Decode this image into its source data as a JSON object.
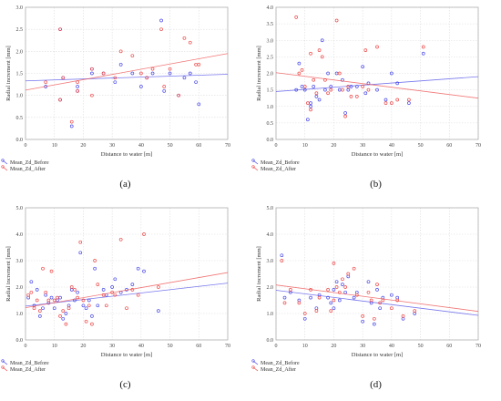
{
  "colors": {
    "before": "#4b4be8",
    "after": "#ee4a4a",
    "frame": "#b0b0b0",
    "grid": "#dddddd"
  },
  "chart_data": [
    {
      "type": "scatter",
      "caption": "(a)",
      "xlabel": "Distance to water [m]",
      "ylabel": "Radial increment [mm]",
      "xlim": [
        0,
        70
      ],
      "ylim": [
        0,
        3.0
      ],
      "xticks": [
        "0",
        "10",
        "20",
        "30",
        "40",
        "50",
        "60",
        "70"
      ],
      "yticks": [
        "0.0",
        "0.5",
        "1.0",
        "1.5",
        "2.0",
        "2.5",
        "3.0"
      ],
      "grid": true,
      "legend": "bottom-left",
      "series": [
        {
          "name": "Mean_Zd_Before",
          "points": [
            [
              7,
              1.2
            ],
            [
              12,
              2.5
            ],
            [
              12,
              0.9
            ],
            [
              13,
              1.4
            ],
            [
              16,
              0.3
            ],
            [
              18,
              1.1
            ],
            [
              18,
              1.2
            ],
            [
              23,
              1.5
            ],
            [
              23,
              1.6
            ],
            [
              27,
              1.5
            ],
            [
              31,
              1.3
            ],
            [
              33,
              1.7
            ],
            [
              37,
              1.5
            ],
            [
              40,
              1.2
            ],
            [
              42,
              1.4
            ],
            [
              44,
              1.5
            ],
            [
              47,
              2.7
            ],
            [
              48,
              1.1
            ],
            [
              50,
              1.5
            ],
            [
              53,
              1.0
            ],
            [
              55,
              1.4
            ],
            [
              57,
              1.5
            ],
            [
              59,
              1.3
            ],
            [
              60,
              0.8
            ]
          ],
          "trend": [
            [
              0,
              1.33
            ],
            [
              70,
              1.48
            ]
          ]
        },
        {
          "name": "Mean_Zd_After",
          "points": [
            [
              7,
              1.3
            ],
            [
              12,
              2.5
            ],
            [
              12,
              0.9
            ],
            [
              13,
              1.4
            ],
            [
              16,
              0.4
            ],
            [
              18,
              1.1
            ],
            [
              18,
              1.3
            ],
            [
              23,
              1.6
            ],
            [
              23,
              1.0
            ],
            [
              27,
              1.5
            ],
            [
              31,
              1.4
            ],
            [
              33,
              2.0
            ],
            [
              37,
              1.9
            ],
            [
              40,
              1.5
            ],
            [
              42,
              1.4
            ],
            [
              44,
              1.6
            ],
            [
              47,
              2.5
            ],
            [
              48,
              1.2
            ],
            [
              50,
              1.6
            ],
            [
              53,
              1.0
            ],
            [
              55,
              2.3
            ],
            [
              57,
              2.2
            ],
            [
              59,
              1.7
            ],
            [
              60,
              1.7
            ]
          ],
          "trend": [
            [
              0,
              1.12
            ],
            [
              70,
              1.95
            ]
          ]
        }
      ]
    },
    {
      "type": "scatter",
      "caption": "(b)",
      "xlabel": "Distance to water [m]",
      "ylabel": "Radial increment [mm]",
      "xlim": [
        0,
        70
      ],
      "ylim": [
        0,
        4.0
      ],
      "xticks": [
        "0",
        "10",
        "20",
        "30",
        "40",
        "50",
        "60",
        "70"
      ],
      "yticks": [
        "0.0",
        "0.5",
        "1.0",
        "1.5",
        "2.0",
        "2.5",
        "3.0",
        "3.5",
        "4.0"
      ],
      "grid": true,
      "legend": "bottom-left",
      "series": [
        {
          "name": "Mean_Zd_Before",
          "points": [
            [
              7,
              1.5
            ],
            [
              8,
              2.3
            ],
            [
              9,
              1.6
            ],
            [
              10,
              1.5
            ],
            [
              11,
              0.6
            ],
            [
              12,
              1.1
            ],
            [
              12,
              1.0
            ],
            [
              13,
              1.6
            ],
            [
              14,
              1.3
            ],
            [
              15,
              1.2
            ],
            [
              16,
              3.0
            ],
            [
              17,
              1.5
            ],
            [
              18,
              2.0
            ],
            [
              19,
              1.6
            ],
            [
              21,
              2.0
            ],
            [
              22,
              1.5
            ],
            [
              23,
              1.8
            ],
            [
              24,
              0.8
            ],
            [
              25,
              1.5
            ],
            [
              26,
              1.6
            ],
            [
              28,
              1.6
            ],
            [
              30,
              2.2
            ],
            [
              31,
              1.4
            ],
            [
              32,
              1.7
            ],
            [
              35,
              1.5
            ],
            [
              38,
              1.2
            ],
            [
              40,
              2.0
            ],
            [
              42,
              1.7
            ],
            [
              46,
              1.1
            ],
            [
              51,
              2.6
            ]
          ],
          "trend": [
            [
              0,
              1.45
            ],
            [
              70,
              1.9
            ]
          ]
        },
        {
          "name": "Mean_Zd_After",
          "points": [
            [
              7,
              3.7
            ],
            [
              8,
              2.0
            ],
            [
              9,
              2.1
            ],
            [
              10,
              1.6
            ],
            [
              11,
              1.1
            ],
            [
              12,
              0.9
            ],
            [
              12,
              2.6
            ],
            [
              13,
              1.8
            ],
            [
              14,
              1.4
            ],
            [
              15,
              2.7
            ],
            [
              16,
              2.5
            ],
            [
              17,
              1.8
            ],
            [
              18,
              1.4
            ],
            [
              19,
              1.5
            ],
            [
              21,
              3.6
            ],
            [
              22,
              2.0
            ],
            [
              23,
              1.5
            ],
            [
              24,
              0.7
            ],
            [
              25,
              1.6
            ],
            [
              26,
              1.3
            ],
            [
              28,
              1.3
            ],
            [
              30,
              1.6
            ],
            [
              31,
              2.7
            ],
            [
              32,
              1.5
            ],
            [
              35,
              2.8
            ],
            [
              38,
              1.1
            ],
            [
              40,
              1.1
            ],
            [
              42,
              1.2
            ],
            [
              46,
              1.2
            ],
            [
              51,
              2.8
            ]
          ],
          "trend": [
            [
              0,
              2.02
            ],
            [
              70,
              1.25
            ]
          ]
        }
      ]
    },
    {
      "type": "scatter",
      "caption": "(c)",
      "xlabel": "Distance to water [m]",
      "ylabel": "Radial increment [mm]",
      "xlim": [
        0,
        70
      ],
      "ylim": [
        0,
        5.0
      ],
      "xticks": [
        "0",
        "10",
        "20",
        "30",
        "40",
        "50",
        "60",
        "70"
      ],
      "yticks": [
        "0.0",
        "1.0",
        "2.0",
        "3.0",
        "4.0",
        "5.0"
      ],
      "grid": true,
      "legend": "bottom-left",
      "series": [
        {
          "name": "Mean_Zd_Before",
          "points": [
            [
              1,
              1.6
            ],
            [
              2,
              2.2
            ],
            [
              3,
              1.3
            ],
            [
              4,
              1.9
            ],
            [
              5,
              0.9
            ],
            [
              6,
              1.2
            ],
            [
              7,
              1.7
            ],
            [
              8,
              1.4
            ],
            [
              9,
              1.6
            ],
            [
              10,
              1.2
            ],
            [
              11,
              1.5
            ],
            [
              12,
              1.6
            ],
            [
              13,
              0.8
            ],
            [
              14,
              1.0
            ],
            [
              15,
              1.3
            ],
            [
              16,
              1.9
            ],
            [
              17,
              1.5
            ],
            [
              18,
              1.8
            ],
            [
              19,
              3.3
            ],
            [
              20,
              1.3
            ],
            [
              21,
              1.2
            ],
            [
              22,
              1.5
            ],
            [
              23,
              0.9
            ],
            [
              24,
              2.7
            ],
            [
              25,
              1.3
            ],
            [
              27,
              1.9
            ],
            [
              28,
              1.7
            ],
            [
              30,
              2.0
            ],
            [
              31,
              2.3
            ],
            [
              33,
              1.8
            ],
            [
              35,
              1.9
            ],
            [
              37,
              2.1
            ],
            [
              39,
              2.7
            ],
            [
              41,
              2.6
            ],
            [
              46,
              1.1
            ]
          ],
          "trend": [
            [
              0,
              1.28
            ],
            [
              70,
              2.15
            ]
          ]
        },
        {
          "name": "Mean_Zd_After",
          "points": [
            [
              1,
              1.7
            ],
            [
              2,
              1.8
            ],
            [
              3,
              1.2
            ],
            [
              4,
              1.5
            ],
            [
              5,
              1.1
            ],
            [
              6,
              2.7
            ],
            [
              7,
              1.8
            ],
            [
              8,
              1.5
            ],
            [
              9,
              2.6
            ],
            [
              10,
              1.5
            ],
            [
              11,
              1.6
            ],
            [
              12,
              0.9
            ],
            [
              13,
              1.1
            ],
            [
              14,
              0.6
            ],
            [
              15,
              1.2
            ],
            [
              16,
              2.0
            ],
            [
              17,
              1.9
            ],
            [
              18,
              1.6
            ],
            [
              19,
              3.7
            ],
            [
              20,
              1.5
            ],
            [
              21,
              0.7
            ],
            [
              22,
              1.3
            ],
            [
              23,
              0.6
            ],
            [
              24,
              3.0
            ],
            [
              25,
              2.1
            ],
            [
              27,
              1.7
            ],
            [
              28,
              1.3
            ],
            [
              30,
              1.8
            ],
            [
              31,
              1.7
            ],
            [
              33,
              3.8
            ],
            [
              35,
              1.2
            ],
            [
              37,
              1.9
            ],
            [
              39,
              1.7
            ],
            [
              41,
              4.0
            ],
            [
              46,
              2.0
            ]
          ],
          "trend": [
            [
              0,
              1.22
            ],
            [
              70,
              2.55
            ]
          ]
        }
      ]
    },
    {
      "type": "scatter",
      "caption": "(d)",
      "xlabel": "Distance to water [m]",
      "ylabel": "Radial increment [mm]",
      "xlim": [
        0,
        70
      ],
      "ylim": [
        0,
        5.0
      ],
      "xticks": [
        "0",
        "10",
        "20",
        "30",
        "40",
        "50",
        "60",
        "70"
      ],
      "yticks": [
        "0.0",
        "1.0",
        "2.0",
        "3.0",
        "4.0",
        "5.0"
      ],
      "grid": true,
      "legend": "bottom-left",
      "series": [
        {
          "name": "Mean_Zd_Before",
          "points": [
            [
              2,
              3.2
            ],
            [
              3,
              1.6
            ],
            [
              5,
              1.8
            ],
            [
              8,
              1.5
            ],
            [
              10,
              0.8
            ],
            [
              12,
              1.6
            ],
            [
              14,
              1.2
            ],
            [
              15,
              1.7
            ],
            [
              18,
              1.6
            ],
            [
              19,
              1.4
            ],
            [
              20,
              1.9
            ],
            [
              20,
              1.2
            ],
            [
              21,
              2.2
            ],
            [
              22,
              1.5
            ],
            [
              23,
              2.1
            ],
            [
              24,
              1.8
            ],
            [
              25,
              2.4
            ],
            [
              27,
              1.6
            ],
            [
              28,
              1.8
            ],
            [
              30,
              0.7
            ],
            [
              32,
              2.2
            ],
            [
              33,
              1.4
            ],
            [
              34,
              0.6
            ],
            [
              35,
              1.9
            ],
            [
              36,
              1.2
            ],
            [
              37,
              1.6
            ],
            [
              40,
              1.7
            ],
            [
              42,
              1.6
            ],
            [
              44,
              0.8
            ],
            [
              48,
              1.0
            ]
          ],
          "trend": [
            [
              0,
              1.88
            ],
            [
              70,
              0.93
            ]
          ]
        },
        {
          "name": "Mean_Zd_After",
          "points": [
            [
              2,
              3.0
            ],
            [
              3,
              1.4
            ],
            [
              5,
              1.9
            ],
            [
              8,
              1.4
            ],
            [
              10,
              1.0
            ],
            [
              12,
              1.9
            ],
            [
              14,
              1.1
            ],
            [
              15,
              1.6
            ],
            [
              18,
              1.9
            ],
            [
              19,
              1.1
            ],
            [
              20,
              2.9
            ],
            [
              20,
              1.5
            ],
            [
              21,
              2.0
            ],
            [
              22,
              1.8
            ],
            [
              23,
              2.3
            ],
            [
              24,
              2.0
            ],
            [
              25,
              2.5
            ],
            [
              27,
              2.7
            ],
            [
              28,
              1.7
            ],
            [
              30,
              0.9
            ],
            [
              32,
              1.8
            ],
            [
              33,
              1.5
            ],
            [
              34,
              0.8
            ],
            [
              35,
              2.1
            ],
            [
              36,
              1.4
            ],
            [
              37,
              1.5
            ],
            [
              40,
              1.2
            ],
            [
              42,
              1.5
            ],
            [
              44,
              0.9
            ],
            [
              48,
              1.1
            ]
          ],
          "trend": [
            [
              0,
              2.08
            ],
            [
              70,
              1.08
            ]
          ]
        }
      ]
    }
  ]
}
